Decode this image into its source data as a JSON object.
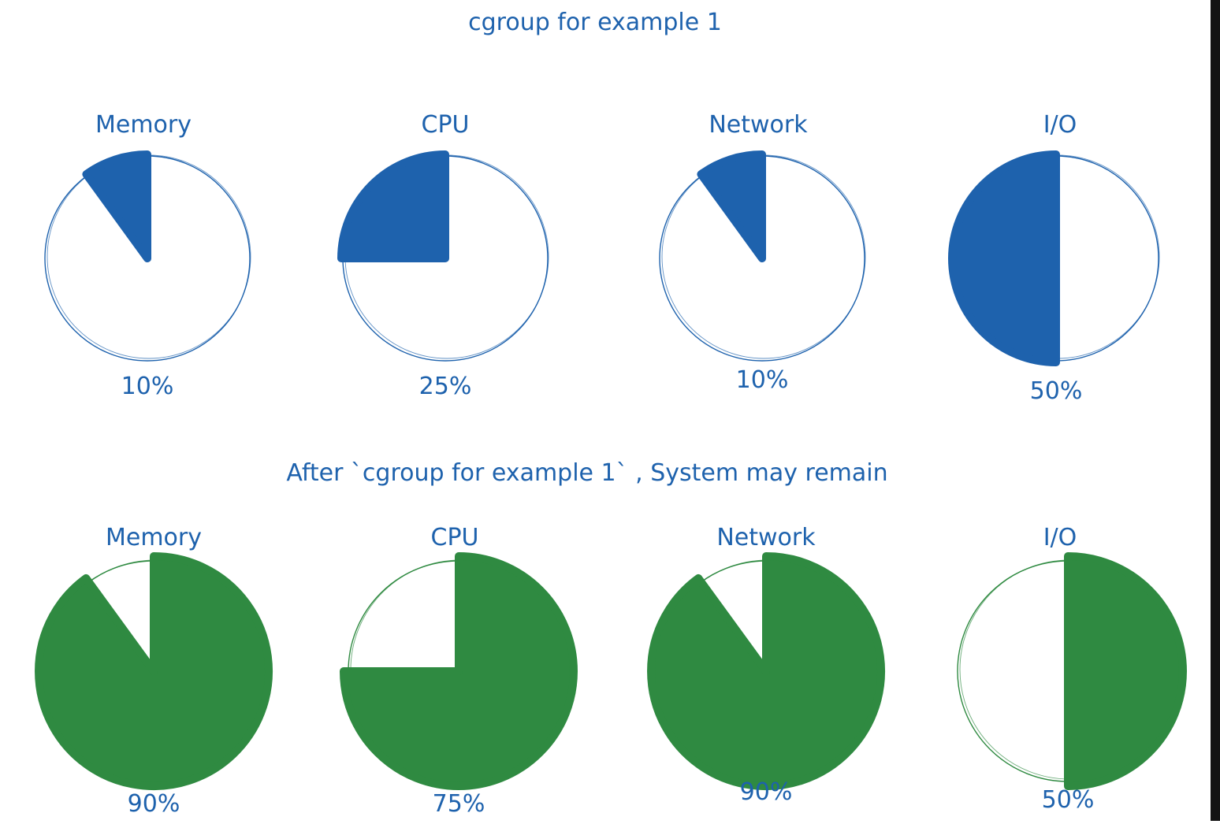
{
  "colors": {
    "primary": "#1e62ad",
    "secondary": "#2f8a41",
    "outline_primary": "#1e62ad",
    "outline_secondary": "#2f8a41",
    "background": "#ffffff",
    "edge": "#141414"
  },
  "chart_data": [
    {
      "type": "pie",
      "title": "cgroup for example 1",
      "categories": [
        "Memory",
        "CPU",
        "Network",
        "I/O"
      ],
      "values": [
        10,
        25,
        10,
        50
      ],
      "value_labels": [
        "10%",
        "25%",
        "10%",
        "50%"
      ],
      "fill_color": "#1e62ad",
      "fill_direction": "counterclockwise"
    },
    {
      "type": "pie",
      "title": "After `cgroup for example 1` , System may remain",
      "categories": [
        "Memory",
        "CPU",
        "Network",
        "I/O"
      ],
      "values": [
        90,
        75,
        90,
        50
      ],
      "value_labels": [
        "90%",
        "75%",
        "90%",
        "50%"
      ],
      "fill_color": "#2f8a41",
      "fill_direction": "clockwise"
    }
  ]
}
